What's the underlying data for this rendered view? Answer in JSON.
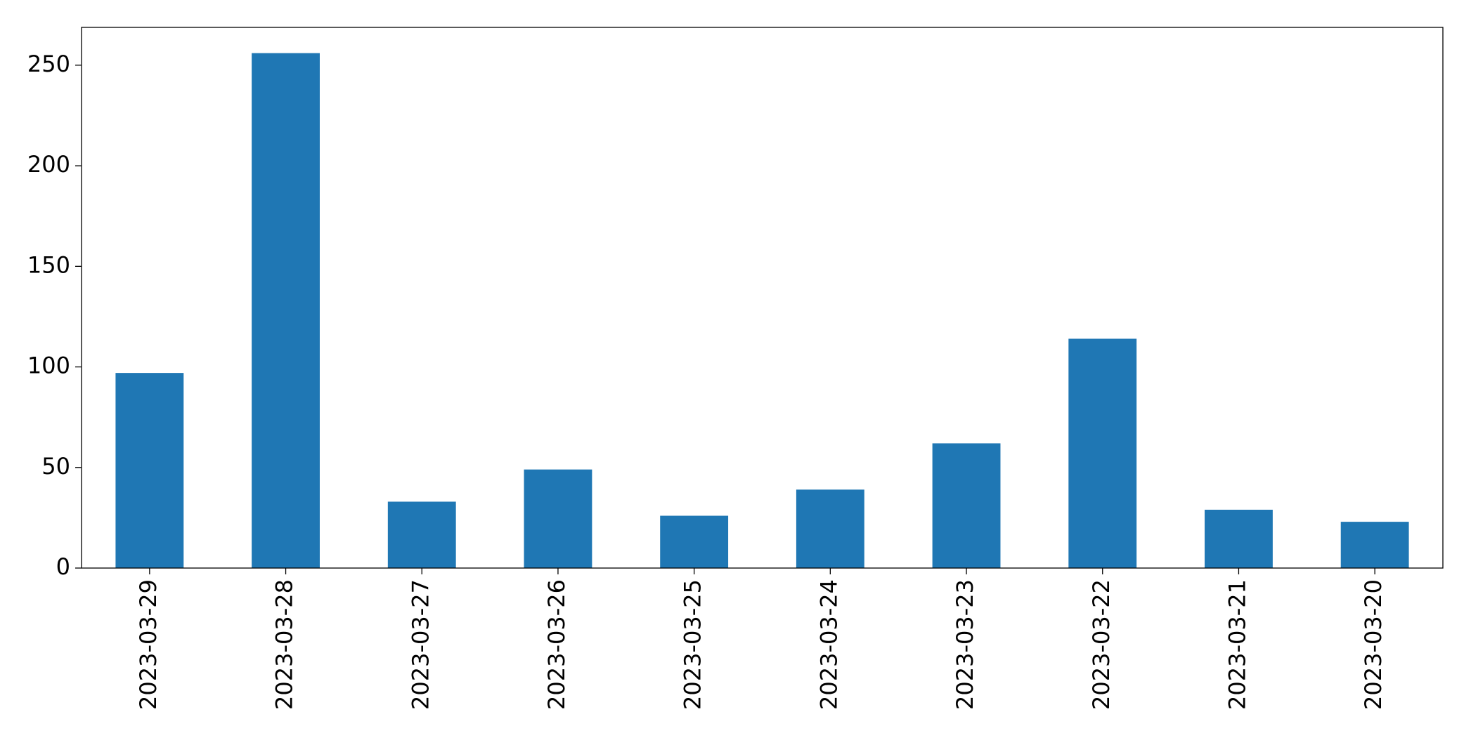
{
  "chart_data": {
    "type": "bar",
    "categories": [
      "2023-03-29",
      "2023-03-28",
      "2023-03-27",
      "2023-03-26",
      "2023-03-25",
      "2023-03-24",
      "2023-03-23",
      "2023-03-22",
      "2023-03-21",
      "2023-03-20"
    ],
    "values": [
      97,
      256,
      33,
      49,
      26,
      39,
      62,
      114,
      29,
      23
    ],
    "color": "#1f77b4",
    "ylim": [
      0,
      268.8
    ],
    "yticks": [
      0,
      50,
      100,
      150,
      200,
      250
    ],
    "grid": false
  }
}
